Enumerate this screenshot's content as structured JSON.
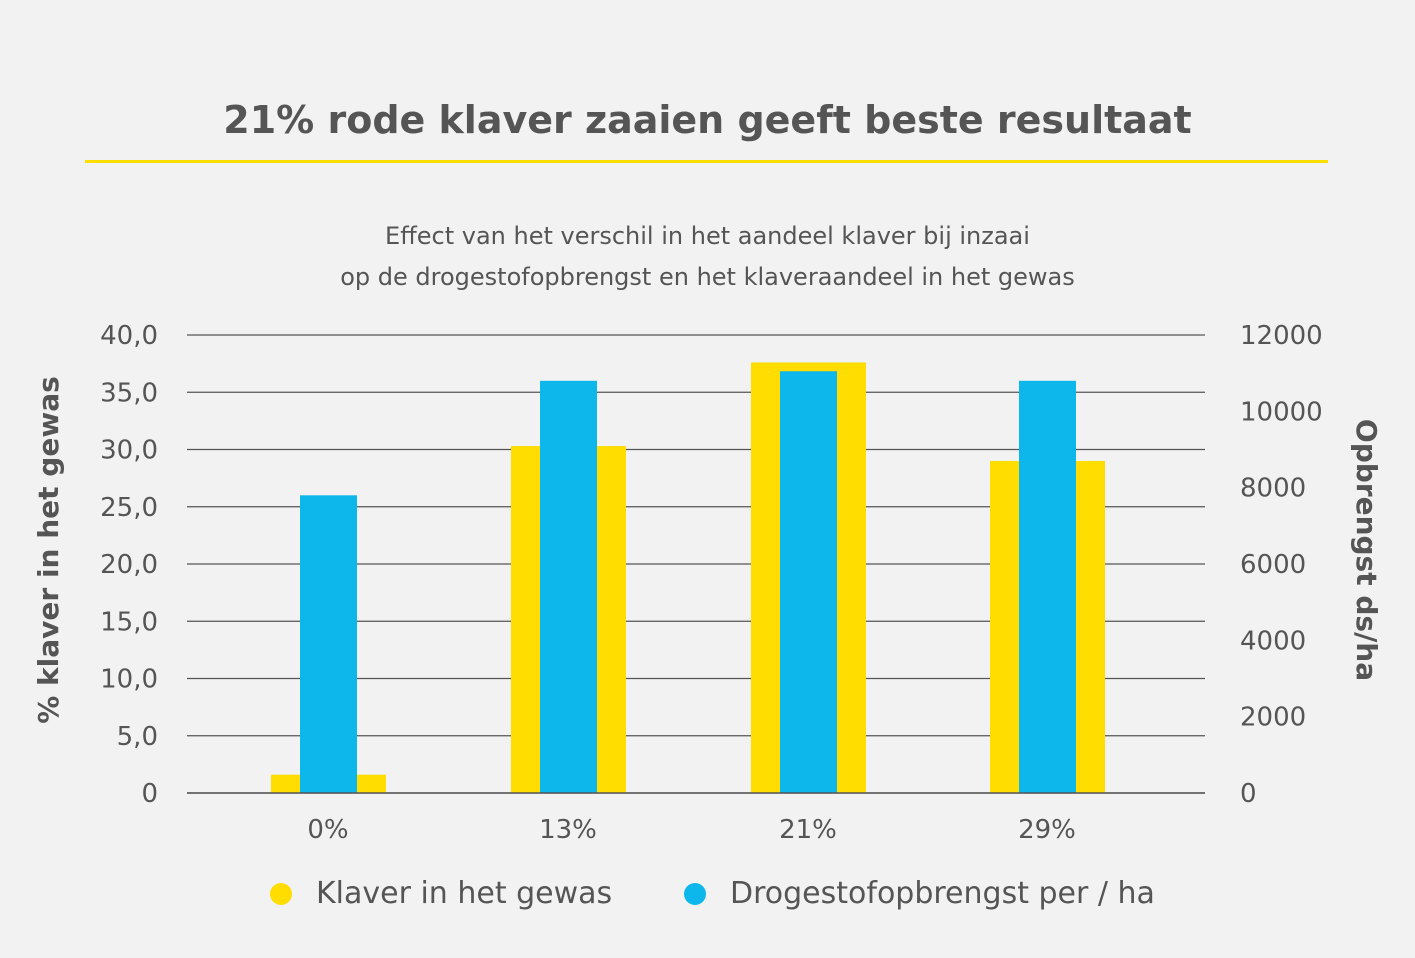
{
  "chart_data": {
    "type": "bar",
    "title": "21% rode klaver zaaien geeft beste resultaat",
    "subtitle": [
      "Effect van het verschil in het aandeel klaver bij inzaai",
      "op de drogestofopbrengst en het klaveraandeel in het gewas"
    ],
    "categories": [
      "0%",
      "13%",
      "21%",
      "29%"
    ],
    "series": [
      {
        "name": "Klaver in het gewas",
        "axis": "left",
        "color": "#ffdd00",
        "values": [
          1.6,
          30.3,
          37.6,
          29.0
        ]
      },
      {
        "name": "Drogestofopbrengst per / ha",
        "axis": "right",
        "color": "#0db7ec",
        "values": [
          7800,
          10800,
          11050,
          10800
        ]
      }
    ],
    "ylabel": "% klaver in het gewas",
    "ylabel_right": "Opbrengst ds/ha",
    "ylim": [
      0,
      40
    ],
    "ylim_right": [
      0,
      12000
    ],
    "yticks": [
      "0",
      "5,0",
      "10,0",
      "15,0",
      "20,0",
      "25,0",
      "30,0",
      "35,0",
      "40,0"
    ],
    "yticks_right": [
      "0",
      "2000",
      "4000",
      "6000",
      "8000",
      "10000",
      "12000"
    ],
    "grid": true,
    "legend_placement": "bottom"
  }
}
